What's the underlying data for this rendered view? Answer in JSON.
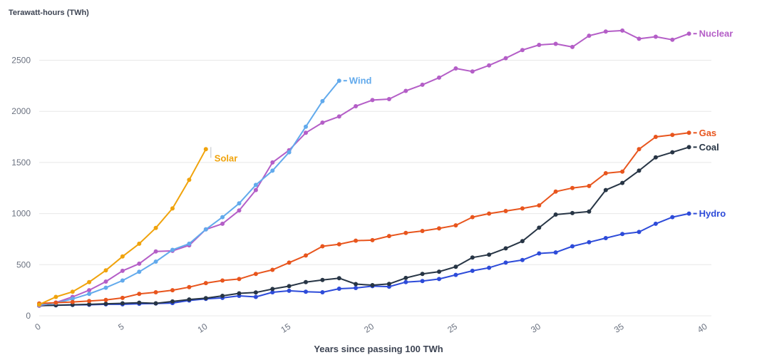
{
  "chart_data": {
    "type": "line",
    "title": "",
    "ylabel": "Terawatt-hours (TWh)",
    "xlabel": "Years since passing 100 TWh",
    "xlim": [
      0,
      40
    ],
    "ylim": [
      0,
      2880
    ],
    "yticks": [
      0,
      500,
      1000,
      1500,
      2000,
      2500
    ],
    "xticks": [
      0,
      5,
      10,
      15,
      20,
      25,
      30,
      35,
      40
    ],
    "grid": "horizontal",
    "legend_position": "line-end-labels",
    "colors": {
      "background": "#ffffff",
      "grid": "#e8e8e8",
      "tick_label": "#6b7280",
      "axis_title": "#3d4453",
      "connector": "#c8cbd0"
    },
    "series": [
      {
        "name": "Hydro",
        "color": "#2d4bd9",
        "values": [
          100,
          103,
          107,
          108,
          112,
          112,
          118,
          120,
          125,
          150,
          165,
          175,
          195,
          185,
          230,
          245,
          235,
          230,
          265,
          272,
          290,
          285,
          330,
          340,
          360,
          400,
          440,
          470,
          520,
          545,
          610,
          620,
          680,
          720,
          760,
          800,
          820,
          900,
          965,
          1000
        ]
      },
      {
        "name": "Coal",
        "color": "#273545",
        "values": [
          100,
          104,
          108,
          112,
          118,
          122,
          128,
          122,
          140,
          160,
          172,
          195,
          220,
          228,
          262,
          290,
          330,
          350,
          368,
          310,
          300,
          312,
          370,
          410,
          432,
          480,
          570,
          598,
          660,
          730,
          862,
          990,
          1005,
          1020,
          1230,
          1300,
          1420,
          1550,
          1600,
          1650
        ]
      },
      {
        "name": "Nuclear",
        "color": "#b45ec7",
        "values": [
          100,
          130,
          185,
          250,
          335,
          440,
          510,
          630,
          635,
          690,
          845,
          900,
          1030,
          1230,
          1500,
          1620,
          1790,
          1890,
          1950,
          2050,
          2110,
          2120,
          2200,
          2260,
          2330,
          2420,
          2390,
          2450,
          2520,
          2600,
          2650,
          2660,
          2630,
          2740,
          2780,
          2790,
          2710,
          2730,
          2700,
          2760
        ]
      },
      {
        "name": "Wind",
        "color": "#62aaec",
        "values": [
          105,
          125,
          165,
          215,
          275,
          345,
          430,
          530,
          645,
          705,
          845,
          965,
          1100,
          1280,
          1420,
          1600,
          1850,
          2100,
          2300
        ]
      },
      {
        "name": "Gas",
        "color": "#e8551d",
        "values": [
          120,
          128,
          135,
          145,
          155,
          175,
          215,
          230,
          250,
          280,
          320,
          345,
          360,
          410,
          450,
          520,
          590,
          680,
          700,
          735,
          740,
          780,
          810,
          830,
          855,
          885,
          965,
          1000,
          1025,
          1050,
          1080,
          1215,
          1250,
          1270,
          1395,
          1410,
          1630,
          1750,
          1770,
          1790
        ]
      },
      {
        "name": "Solar",
        "color": "#f0a30c",
        "label_offset": [
          12,
          17
        ],
        "connector": "v",
        "values": [
          110,
          185,
          235,
          330,
          445,
          580,
          705,
          860,
          1050,
          1330,
          1630
        ]
      }
    ]
  }
}
